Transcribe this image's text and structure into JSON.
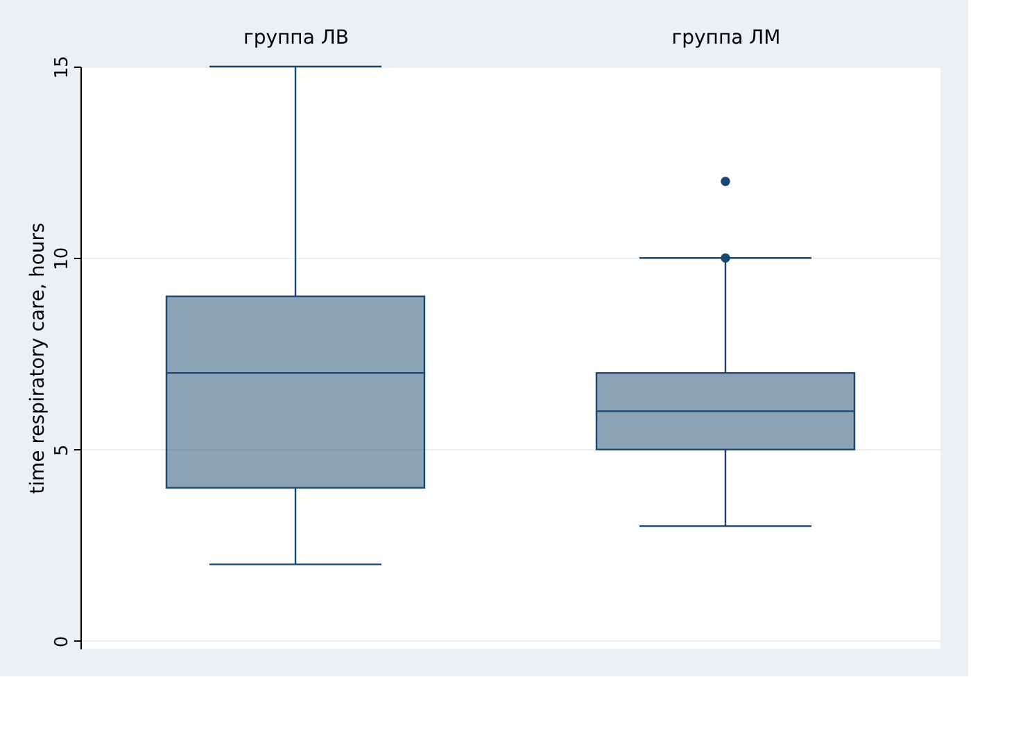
{
  "chart_data": {
    "type": "box",
    "ylabel": "time respiratory care, hours",
    "categories": [
      "группа ЛВ",
      "группа ЛМ"
    ],
    "ylim": [
      -0.2,
      15
    ],
    "yticks": [
      0,
      5,
      10,
      15
    ],
    "grid": "y",
    "series": [
      {
        "color": "#1a476f",
        "boxes": [
          {
            "low": 2,
            "q1": 4,
            "median": 7,
            "q3": 9,
            "high": 15
          },
          {
            "low": 3,
            "q1": 5,
            "median": 6,
            "q3": 7,
            "high": 10,
            "outliers": [
              10,
              12
            ]
          }
        ]
      }
    ]
  }
}
